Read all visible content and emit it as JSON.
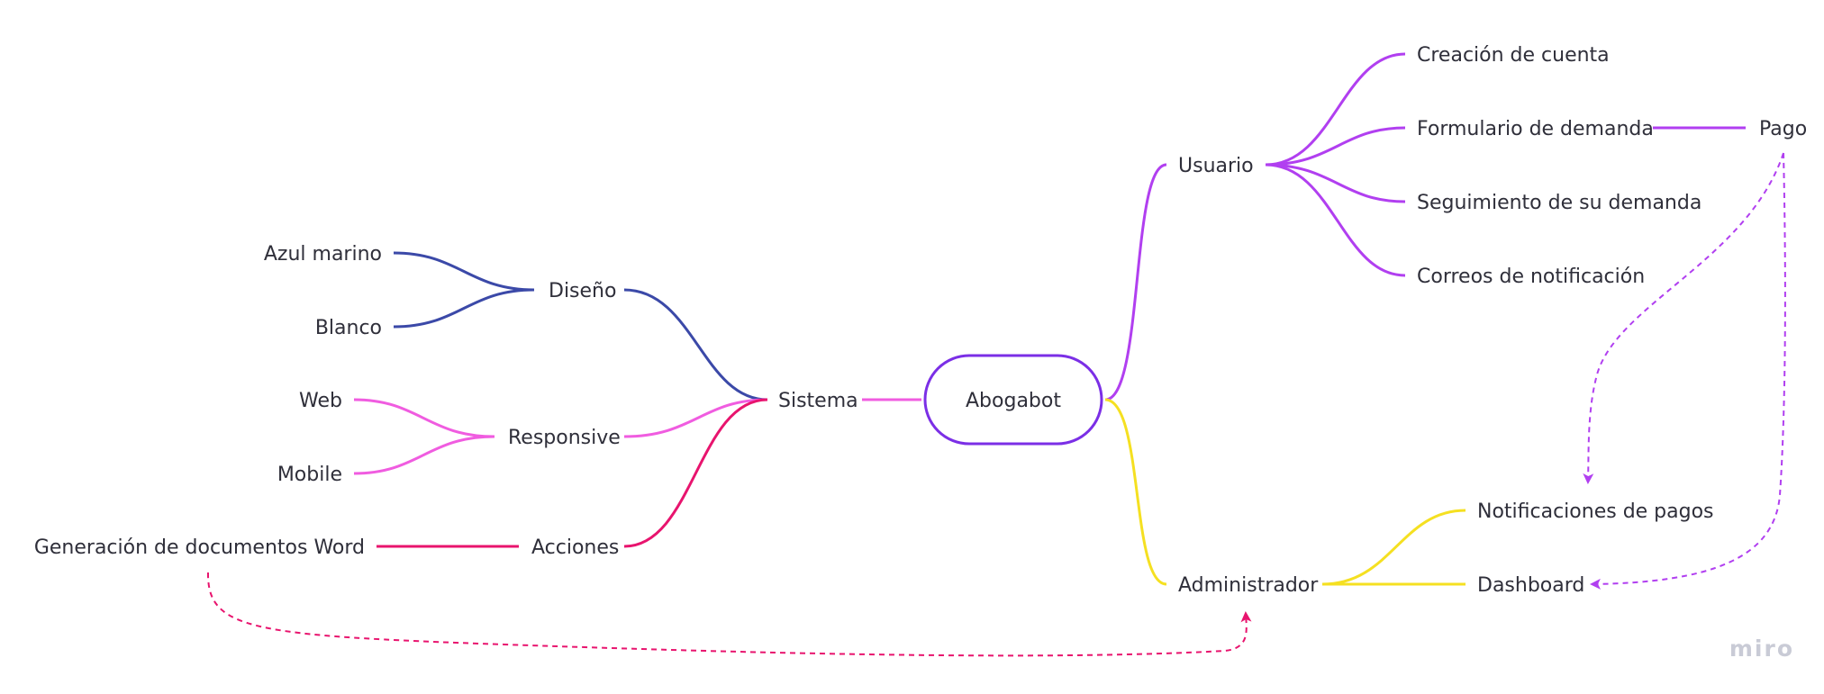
{
  "root": {
    "label": "Abogabot",
    "color": "#7b2fe6"
  },
  "nodes": {
    "sistema": "Sistema",
    "diseno": "Diseño",
    "azul_marino": "Azul marino",
    "blanco": "Blanco",
    "responsive": "Responsive",
    "web": "Web",
    "mobile": "Mobile",
    "acciones": "Acciones",
    "generacion_word": "Generación de documentos Word",
    "usuario": "Usuario",
    "creacion_cuenta": "Creación de cuenta",
    "formulario_demanda": "Formulario de demanda",
    "pago": "Pago",
    "seguimiento_demanda": "Seguimiento de su demanda",
    "correos_notificacion": "Correos de notificación",
    "administrador": "Administrador",
    "notificaciones_pagos": "Notificaciones de pagos",
    "dashboard": "Dashboard"
  },
  "branch_colors": {
    "diseno": "#3b49a8",
    "responsive": "#f05ce0",
    "acciones": "#e8146e",
    "usuario": "#b13ff0",
    "administrador": "#f5e021"
  },
  "watermark": "miro"
}
